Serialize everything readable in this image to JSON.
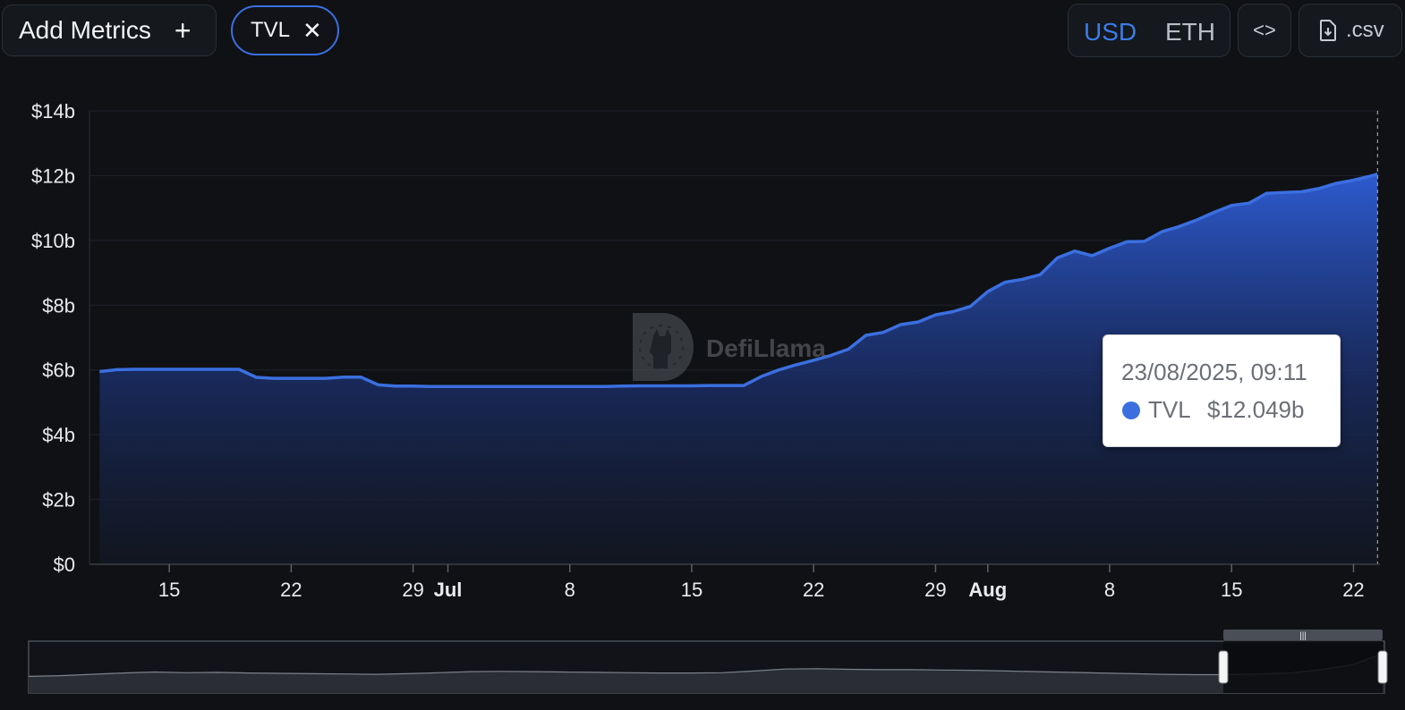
{
  "toolbar": {
    "add_metrics_label": "Add Metrics",
    "add_icon": "plus-icon",
    "chip_label": "TVL",
    "chip_close_icon": "close-icon",
    "currency_options": [
      "USD",
      "ETH"
    ],
    "currency_selected": "USD",
    "embed_icon": "code-icon",
    "csv_icon": "file-download-icon",
    "csv_label": ".csv"
  },
  "watermark": {
    "text": "DefiLlama",
    "icon": "llama-logo-icon"
  },
  "tooltip": {
    "date": "23/08/2025, 09:11",
    "series": "TVL",
    "value": "$12.049b"
  },
  "colors": {
    "accent": "#3b6fe0",
    "background": "#0f1115",
    "grid": "#1f232a"
  },
  "chart_data": {
    "type": "area",
    "title": "",
    "xlabel": "",
    "ylabel": "",
    "grid": true,
    "x_range": [
      "2025-06-09",
      "2025-08-23"
    ],
    "ylim": [
      0,
      14
    ],
    "y_ticks": [
      "$0",
      "$2b",
      "$4b",
      "$6b",
      "$8b",
      "$10b",
      "$12b",
      "$14b"
    ],
    "x_ticks": [
      {
        "label": "15",
        "date": "2025-06-15",
        "bold": false
      },
      {
        "label": "22",
        "date": "2025-06-22",
        "bold": false
      },
      {
        "label": "29",
        "date": "2025-06-29",
        "bold": false
      },
      {
        "label": "Jul",
        "date": "2025-07-01",
        "bold": true
      },
      {
        "label": "8",
        "date": "2025-07-08",
        "bold": false
      },
      {
        "label": "15",
        "date": "2025-07-15",
        "bold": false
      },
      {
        "label": "22",
        "date": "2025-07-22",
        "bold": false
      },
      {
        "label": "29",
        "date": "2025-07-29",
        "bold": false
      },
      {
        "label": "Aug",
        "date": "2025-08-01",
        "bold": true
      },
      {
        "label": "8",
        "date": "2025-08-08",
        "bold": false
      },
      {
        "label": "15",
        "date": "2025-08-15",
        "bold": false
      },
      {
        "label": "22",
        "date": "2025-08-22",
        "bold": false
      }
    ],
    "series": [
      {
        "values_unit": "$b",
        "points": [
          [
            "2025-06-11",
            5.95
          ],
          [
            "2025-06-12",
            6.01
          ],
          [
            "2025-06-13",
            6.02
          ],
          [
            "2025-06-14",
            6.02
          ],
          [
            "2025-06-15",
            6.02
          ],
          [
            "2025-06-16",
            6.02
          ],
          [
            "2025-06-17",
            6.02
          ],
          [
            "2025-06-18",
            6.02
          ],
          [
            "2025-06-19",
            6.02
          ],
          [
            "2025-06-20",
            5.77
          ],
          [
            "2025-06-21",
            5.74
          ],
          [
            "2025-06-22",
            5.74
          ],
          [
            "2025-06-23",
            5.74
          ],
          [
            "2025-06-24",
            5.74
          ],
          [
            "2025-06-25",
            5.78
          ],
          [
            "2025-06-26",
            5.78
          ],
          [
            "2025-06-27",
            5.54
          ],
          [
            "2025-06-28",
            5.5
          ],
          [
            "2025-06-29",
            5.5
          ],
          [
            "2025-06-30",
            5.49
          ],
          [
            "2025-07-01",
            5.49
          ],
          [
            "2025-07-02",
            5.49
          ],
          [
            "2025-07-03",
            5.49
          ],
          [
            "2025-07-04",
            5.49
          ],
          [
            "2025-07-05",
            5.49
          ],
          [
            "2025-07-06",
            5.49
          ],
          [
            "2025-07-07",
            5.49
          ],
          [
            "2025-07-08",
            5.49
          ],
          [
            "2025-07-09",
            5.49
          ],
          [
            "2025-07-10",
            5.49
          ],
          [
            "2025-07-11",
            5.5
          ],
          [
            "2025-07-12",
            5.51
          ],
          [
            "2025-07-13",
            5.51
          ],
          [
            "2025-07-14",
            5.51
          ],
          [
            "2025-07-15",
            5.51
          ],
          [
            "2025-07-16",
            5.52
          ],
          [
            "2025-07-17",
            5.52
          ],
          [
            "2025-07-18",
            5.52
          ],
          [
            "2025-07-19",
            5.8
          ],
          [
            "2025-07-20",
            6.0
          ],
          [
            "2025-07-21",
            6.16
          ],
          [
            "2025-07-22",
            6.3
          ],
          [
            "2025-07-23",
            6.45
          ],
          [
            "2025-07-24",
            6.64
          ],
          [
            "2025-07-25",
            7.07
          ],
          [
            "2025-07-26",
            7.16
          ],
          [
            "2025-07-27",
            7.4
          ],
          [
            "2025-07-28",
            7.48
          ],
          [
            "2025-07-29",
            7.7
          ],
          [
            "2025-07-30",
            7.8
          ],
          [
            "2025-07-31",
            7.96
          ],
          [
            "2025-08-01",
            8.42
          ],
          [
            "2025-08-02",
            8.71
          ],
          [
            "2025-08-03",
            8.8
          ],
          [
            "2025-08-04",
            8.94
          ],
          [
            "2025-08-05",
            9.46
          ],
          [
            "2025-08-06",
            9.67
          ],
          [
            "2025-08-07",
            9.53
          ],
          [
            "2025-08-08",
            9.76
          ],
          [
            "2025-08-09",
            9.96
          ],
          [
            "2025-08-10",
            9.97
          ],
          [
            "2025-08-11",
            10.27
          ],
          [
            "2025-08-12",
            10.43
          ],
          [
            "2025-08-13",
            10.63
          ],
          [
            "2025-08-14",
            10.87
          ],
          [
            "2025-08-15",
            11.08
          ],
          [
            "2025-08-16",
            11.15
          ],
          [
            "2025-08-17",
            11.45
          ],
          [
            "2025-08-18",
            11.48
          ],
          [
            "2025-08-19",
            11.5
          ],
          [
            "2025-08-20",
            11.6
          ],
          [
            "2025-08-21",
            11.76
          ],
          [
            "2025-08-22",
            11.86
          ],
          [
            "2025-08-23",
            11.99
          ],
          [
            "2025-08-23T09:11",
            12.049
          ]
        ]
      }
    ],
    "navigator": {
      "range_start": "2025-06-09",
      "range_end": "2025-08-23",
      "overview": [
        5.0,
        5.2,
        5.6,
        6.0,
        6.3,
        6.1,
        6.2,
        6.0,
        5.9,
        5.8,
        5.7,
        5.6,
        5.8,
        6.1,
        6.4,
        6.5,
        6.4,
        6.3,
        6.2,
        6.1,
        6.0,
        6.0,
        6.1,
        6.6,
        7.2,
        7.3,
        7.1,
        7.0,
        7.0,
        6.9,
        6.8,
        6.6,
        6.4,
        6.2,
        6.0,
        5.8,
        5.6,
        5.5,
        5.5,
        5.7,
        6.0,
        7.0,
        8.5,
        12.0
      ]
    }
  }
}
